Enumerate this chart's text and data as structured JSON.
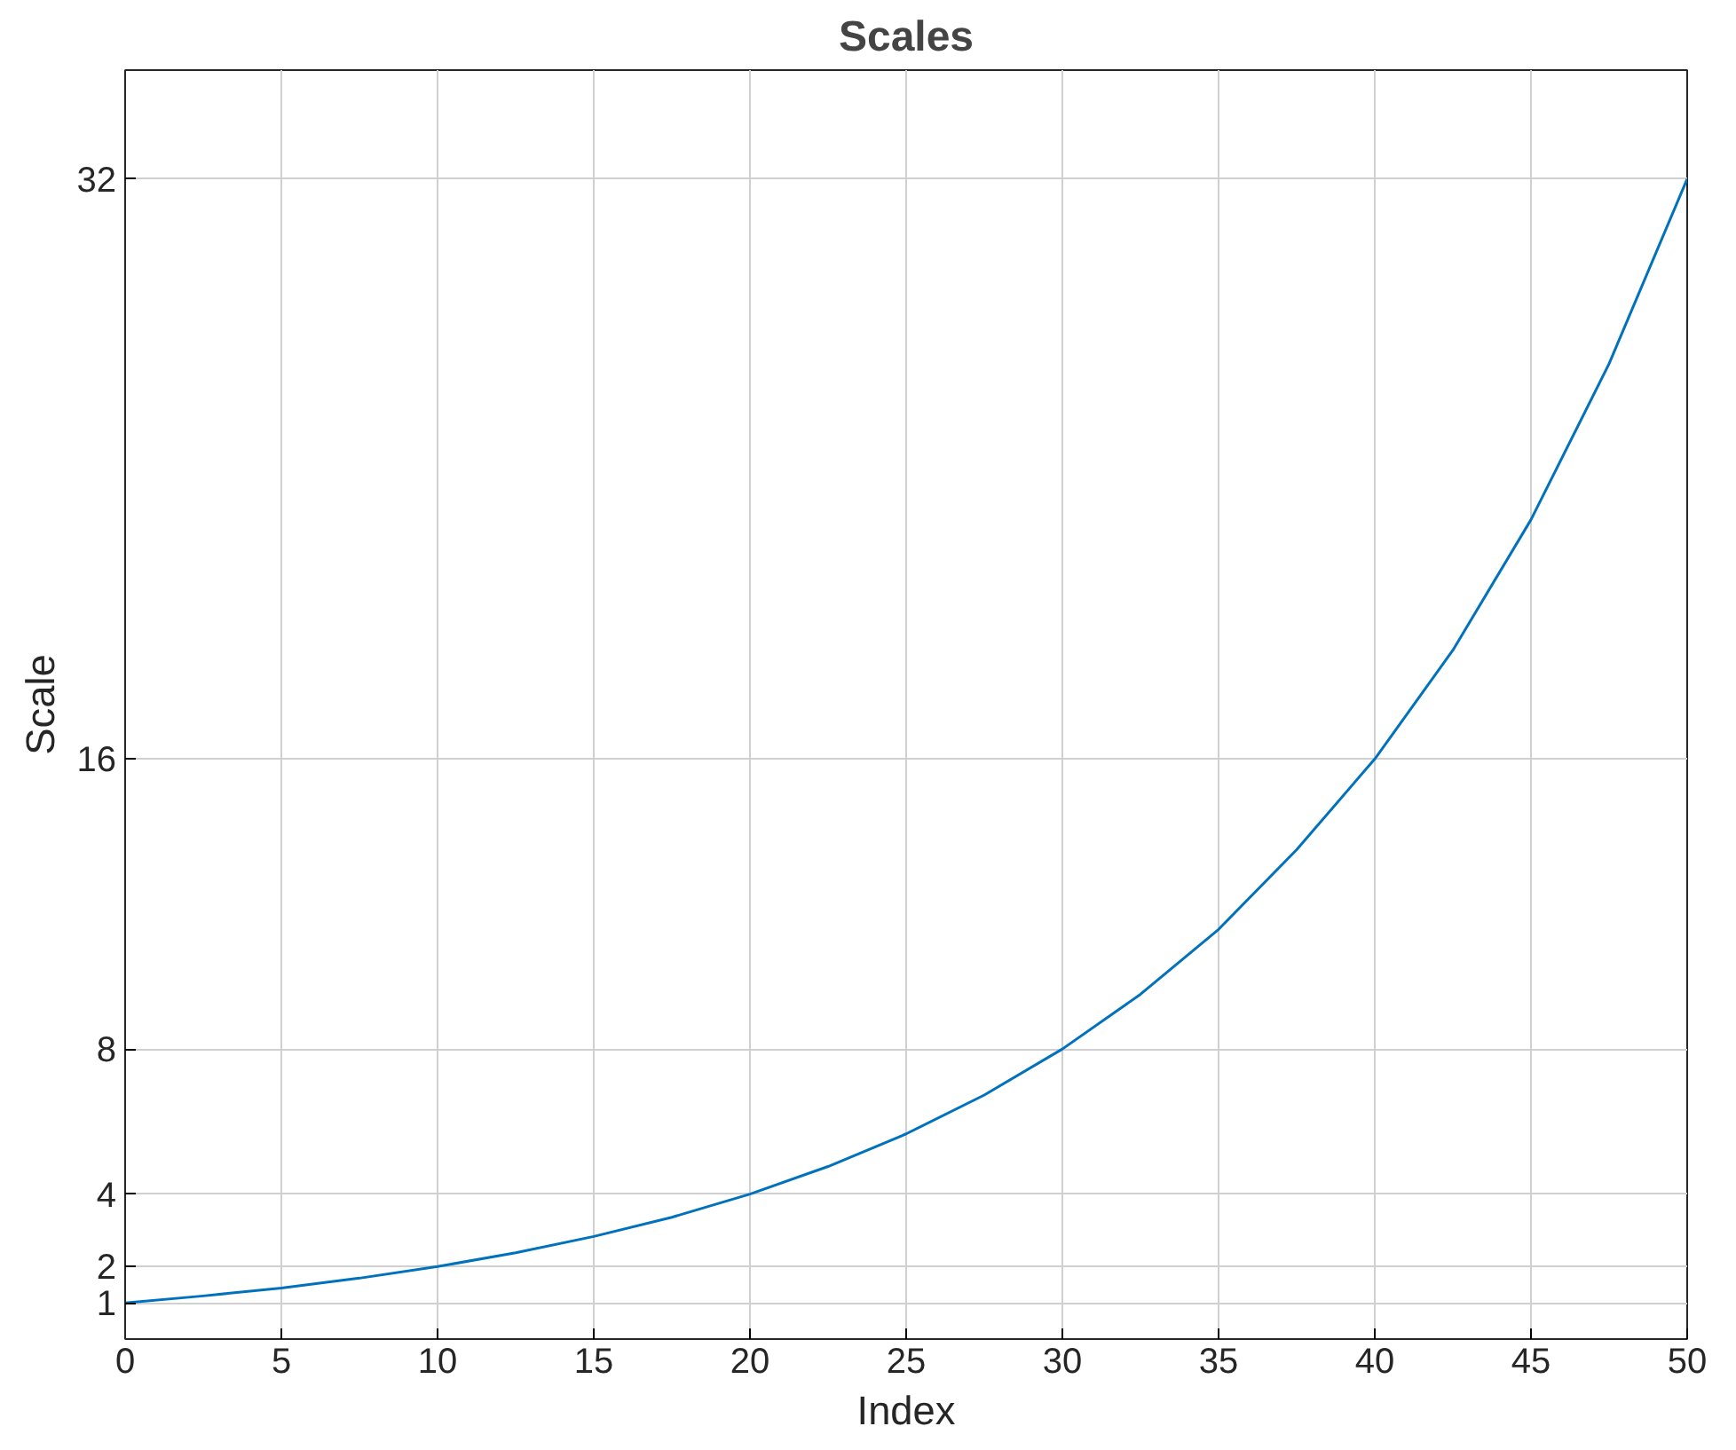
{
  "chart_data": {
    "type": "line",
    "title": "Scales",
    "xlabel": "Index",
    "ylabel": "Scale",
    "x": [
      0,
      2.5,
      5,
      7.5,
      10,
      12.5,
      15,
      17.5,
      20,
      22.5,
      25,
      27.5,
      30,
      32.5,
      35,
      37.5,
      40,
      42.5,
      45,
      47.5,
      50
    ],
    "series": [
      {
        "color": "#0072bd",
        "values": [
          1,
          1.19,
          1.41,
          1.68,
          2,
          2.38,
          2.83,
          3.36,
          4,
          4.76,
          5.66,
          6.73,
          8,
          9.51,
          11.3,
          13.5,
          16,
          19,
          22.6,
          26.9,
          32
        ]
      }
    ],
    "xlim": [
      0,
      50
    ],
    "xticks": [
      0,
      5,
      10,
      15,
      20,
      25,
      30,
      35,
      40,
      45,
      50
    ],
    "ylim": [
      0,
      35
    ],
    "yticks": [
      1,
      2,
      4,
      8,
      16,
      32
    ],
    "grid": true,
    "marker": "none",
    "line_style": "solid"
  }
}
